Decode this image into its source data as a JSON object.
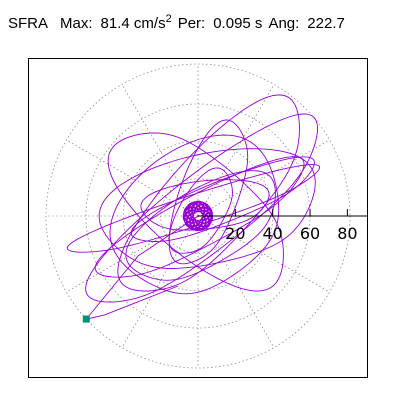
{
  "header": {
    "component": "SFRA",
    "max_label": "Max:",
    "max_value": "81.4",
    "max_unit": "cm/s",
    "max_unit_exp": "2",
    "per_label": "Per:",
    "per_value": "0.095 s",
    "ang_label": "Ang:",
    "ang_value": "222.7"
  },
  "colors": {
    "trace": "#9400d3",
    "grid": "#8c8c8c",
    "axis": "#000000",
    "marker": "#009070",
    "frame": "#000000"
  },
  "chart_data": {
    "type": "polar-orbit",
    "radial_ticks": [
      "20",
      "40",
      "60",
      "80"
    ],
    "radial_tick_values": [
      20,
      40,
      60,
      80
    ],
    "rmax": 81.4,
    "grid_rings": [
      20,
      40,
      60,
      81.4
    ],
    "grid_spokes_deg": [
      0,
      30,
      60,
      90,
      120,
      150,
      180,
      210,
      240,
      270,
      300,
      330
    ],
    "peak": {
      "angle_deg": 222.7,
      "magnitude": 81.4
    },
    "orbit_loops": [
      {
        "a": 76,
        "b": 22,
        "rot": 38,
        "cx": 4,
        "cy": 2,
        "start": 0
      },
      {
        "a": 62,
        "b": 15,
        "rot": 28,
        "cx": 2,
        "cy": -2,
        "start": 60
      },
      {
        "a": 58,
        "b": 32,
        "rot": 12,
        "cx": 6,
        "cy": 4,
        "start": 120
      },
      {
        "a": 66,
        "b": 26,
        "rot": 48,
        "cx": 8,
        "cy": 10,
        "start": 200
      },
      {
        "a": 52,
        "b": 12,
        "rot": 22,
        "cx": 14,
        "cy": 8,
        "start": 30
      },
      {
        "a": 47,
        "b": 40,
        "rot": 36,
        "cx": 0,
        "cy": 0,
        "start": 250
      },
      {
        "a": 34,
        "b": 14,
        "rot": 6,
        "cx": 4,
        "cy": 6,
        "start": 300
      },
      {
        "a": 70,
        "b": 9,
        "rot": 18,
        "cx": -2,
        "cy": 3,
        "start": 170
      },
      {
        "a": 25,
        "b": 13,
        "rot": 60,
        "cx": 2,
        "cy": 2,
        "start": 90
      },
      {
        "a": 56,
        "b": 28,
        "rot": 140,
        "cx": 1,
        "cy": 4,
        "start": 340
      },
      {
        "a": 44,
        "b": 22,
        "rot": 30,
        "cx": 3,
        "cy": -6,
        "start": 10
      },
      {
        "a": 40,
        "b": 17,
        "rot": 70,
        "cx": 6,
        "cy": 12,
        "start": 140
      }
    ],
    "center_jitter": {
      "radius": 8,
      "turns": 40
    }
  }
}
